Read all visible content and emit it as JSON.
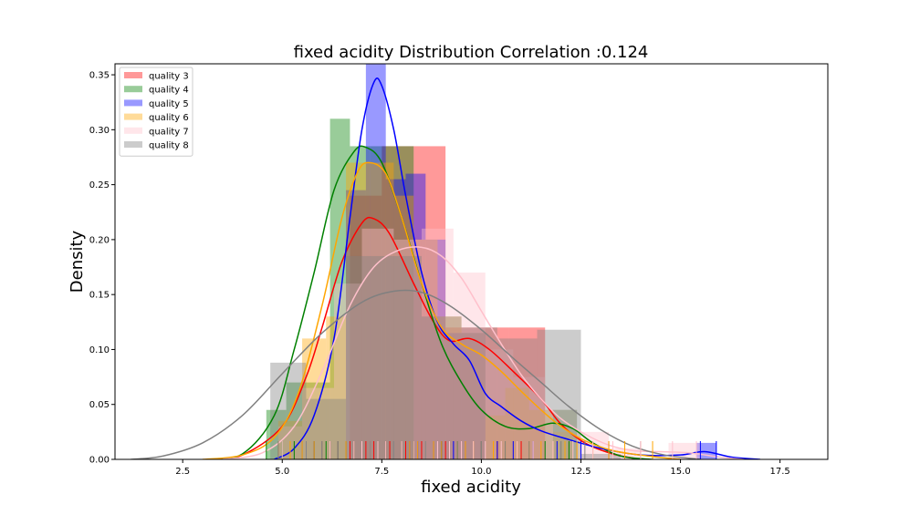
{
  "chart_data": {
    "type": "histogram-kde",
    "title": "fixed acidity Distribution Correlation :0.124",
    "xlabel": "fixed acidity",
    "ylabel": "Density",
    "xlim": [
      0.8,
      18.7
    ],
    "ylim": [
      0,
      0.36
    ],
    "xticks": [
      2.5,
      5.0,
      7.5,
      10.0,
      12.5,
      15.0,
      17.5
    ],
    "xtick_labels": [
      "2.5",
      "5.0",
      "7.5",
      "10.0",
      "12.5",
      "15.0",
      "17.5"
    ],
    "yticks": [
      0,
      0.05,
      0.1,
      0.15,
      0.2,
      0.25,
      0.3,
      0.35
    ],
    "ytick_labels": [
      "0.00",
      "0.05",
      "0.10",
      "0.15",
      "0.20",
      "0.25",
      "0.30",
      "0.35"
    ],
    "legend_position": "top-left",
    "series": [
      {
        "name": "quality 3",
        "color": "#ff0000",
        "bars": [
          [
            6.7,
            7.5,
            0.24
          ],
          [
            7.5,
            8.3,
            0.285
          ],
          [
            8.3,
            9.1,
            0.285
          ],
          [
            9.1,
            9.9,
            0.12
          ],
          [
            9.9,
            10.7,
            0.12
          ],
          [
            10.7,
            11.6,
            0.12
          ]
        ],
        "kde": [
          [
            3.2,
            0.0
          ],
          [
            4.0,
            0.004
          ],
          [
            5.0,
            0.03
          ],
          [
            5.6,
            0.075
          ],
          [
            6.0,
            0.12
          ],
          [
            6.5,
            0.18
          ],
          [
            7.0,
            0.215
          ],
          [
            7.3,
            0.219
          ],
          [
            7.7,
            0.205
          ],
          [
            8.3,
            0.16
          ],
          [
            8.8,
            0.125
          ],
          [
            9.2,
            0.108
          ],
          [
            9.7,
            0.11
          ],
          [
            10.2,
            0.1
          ],
          [
            10.8,
            0.08
          ],
          [
            11.5,
            0.055
          ],
          [
            12.0,
            0.032
          ],
          [
            12.6,
            0.015
          ],
          [
            13.3,
            0.005
          ],
          [
            14.0,
            0.0
          ]
        ],
        "rug": [
          6.7,
          7.1,
          7.3,
          7.6,
          7.7,
          8.1,
          8.3,
          8.5,
          9.1,
          10.4,
          11.0
        ]
      },
      {
        "name": "quality 4",
        "color": "#008000",
        "bars": [
          [
            4.6,
            5.1,
            0.045
          ],
          [
            5.1,
            5.6,
            0.07
          ],
          [
            5.6,
            6.2,
            0.07
          ],
          [
            6.2,
            6.7,
            0.31
          ],
          [
            6.7,
            7.2,
            0.285
          ],
          [
            7.2,
            7.7,
            0.285
          ],
          [
            7.7,
            8.3,
            0.285
          ],
          [
            8.3,
            8.8,
            0.0
          ],
          [
            8.8,
            9.3,
            0.0
          ],
          [
            11.8,
            12.4,
            0.045
          ]
        ],
        "kde": [
          [
            3.1,
            0.0
          ],
          [
            4.0,
            0.005
          ],
          [
            4.8,
            0.04
          ],
          [
            5.3,
            0.1
          ],
          [
            5.8,
            0.17
          ],
          [
            6.3,
            0.245
          ],
          [
            6.8,
            0.28
          ],
          [
            7.1,
            0.284
          ],
          [
            7.5,
            0.27
          ],
          [
            8.0,
            0.22
          ],
          [
            8.5,
            0.16
          ],
          [
            9.0,
            0.105
          ],
          [
            9.5,
            0.07
          ],
          [
            10.0,
            0.045
          ],
          [
            10.6,
            0.03
          ],
          [
            11.2,
            0.028
          ],
          [
            11.8,
            0.033
          ],
          [
            12.3,
            0.028
          ],
          [
            12.8,
            0.015
          ],
          [
            13.5,
            0.003
          ],
          [
            14.3,
            0.0
          ]
        ],
        "rug": [
          4.6,
          5.0,
          5.3,
          5.8,
          6.1,
          6.4,
          6.6,
          6.8,
          7.0,
          7.2,
          7.4,
          7.6,
          7.8,
          8.0,
          8.3,
          8.6,
          9.0,
          9.4,
          10.0,
          11.6,
          12.2
        ]
      },
      {
        "name": "quality 5",
        "color": "#0000ff",
        "bars": [
          [
            6.6,
            7.1,
            0.245
          ],
          [
            7.1,
            7.6,
            0.36
          ],
          [
            7.6,
            8.1,
            0.255
          ],
          [
            8.1,
            8.6,
            0.26
          ],
          [
            8.6,
            9.1,
            0.2
          ],
          [
            9.1,
            9.6,
            0.115
          ],
          [
            9.6,
            10.1,
            0.115
          ],
          [
            15.4,
            15.9,
            0.015
          ]
        ],
        "kde": [
          [
            4.8,
            0.0
          ],
          [
            5.3,
            0.01
          ],
          [
            5.8,
            0.04
          ],
          [
            6.3,
            0.11
          ],
          [
            6.7,
            0.22
          ],
          [
            7.0,
            0.3
          ],
          [
            7.3,
            0.343
          ],
          [
            7.5,
            0.34
          ],
          [
            7.8,
            0.3
          ],
          [
            8.1,
            0.24
          ],
          [
            8.5,
            0.17
          ],
          [
            8.9,
            0.125
          ],
          [
            9.3,
            0.105
          ],
          [
            9.7,
            0.09
          ],
          [
            10.1,
            0.06
          ],
          [
            10.5,
            0.048
          ],
          [
            11.0,
            0.035
          ],
          [
            11.5,
            0.026
          ],
          [
            12.2,
            0.018
          ],
          [
            13.0,
            0.01
          ],
          [
            14.0,
            0.004
          ],
          [
            15.0,
            0.004
          ],
          [
            15.6,
            0.007
          ],
          [
            16.3,
            0.002
          ],
          [
            17.0,
            0.0
          ]
        ],
        "rug": [
          5.5,
          5.8,
          6.0,
          6.2,
          6.4,
          6.6,
          6.8,
          7.0,
          7.2,
          7.4,
          7.6,
          7.8,
          8.0,
          8.2,
          8.4,
          8.6,
          8.8,
          9.0,
          9.3,
          9.6,
          10.0,
          10.4,
          10.8,
          11.3,
          11.9,
          12.5,
          13.2,
          14.0,
          15.5,
          15.9
        ]
      },
      {
        "name": "quality 6",
        "color": "#ffa500",
        "bars": [
          [
            4.9,
            5.5,
            0.035
          ],
          [
            5.5,
            6.1,
            0.11
          ],
          [
            6.1,
            6.6,
            0.13
          ],
          [
            6.6,
            7.2,
            0.27
          ],
          [
            7.2,
            7.8,
            0.27
          ],
          [
            7.8,
            8.3,
            0.24
          ],
          [
            8.3,
            8.9,
            0.2
          ],
          [
            8.9,
            9.5,
            0.13
          ],
          [
            9.5,
            10.1,
            0.115
          ],
          [
            10.1,
            10.6,
            0.04
          ],
          [
            10.6,
            11.2,
            0.065
          ],
          [
            11.2,
            11.8,
            0.045
          ],
          [
            11.8,
            12.3,
            0.025
          ]
        ],
        "kde": [
          [
            3.0,
            0.0
          ],
          [
            4.0,
            0.004
          ],
          [
            4.8,
            0.02
          ],
          [
            5.4,
            0.06
          ],
          [
            6.0,
            0.14
          ],
          [
            6.5,
            0.22
          ],
          [
            6.9,
            0.262
          ],
          [
            7.2,
            0.27
          ],
          [
            7.6,
            0.26
          ],
          [
            8.0,
            0.22
          ],
          [
            8.5,
            0.16
          ],
          [
            9.0,
            0.12
          ],
          [
            9.5,
            0.105
          ],
          [
            10.0,
            0.095
          ],
          [
            10.5,
            0.08
          ],
          [
            11.0,
            0.062
          ],
          [
            11.5,
            0.045
          ],
          [
            12.0,
            0.03
          ],
          [
            12.6,
            0.017
          ],
          [
            13.3,
            0.008
          ],
          [
            14.2,
            0.003
          ],
          [
            15.0,
            0.0
          ]
        ],
        "rug": [
          4.9,
          5.2,
          5.5,
          5.8,
          6.0,
          6.2,
          6.4,
          6.6,
          6.8,
          7.0,
          7.2,
          7.4,
          7.6,
          7.8,
          8.0,
          8.2,
          8.4,
          8.6,
          8.8,
          9.0,
          9.2,
          9.4,
          9.6,
          9.8,
          10.0,
          10.3,
          10.6,
          10.9,
          11.2,
          11.5,
          11.8,
          12.1,
          12.4,
          12.8,
          13.2,
          13.6,
          14.0,
          14.3
        ]
      },
      {
        "name": "quality 7",
        "color": "#ffc0cb",
        "bars": [
          [
            4.9,
            5.5,
            0.03
          ],
          [
            5.5,
            6.3,
            0.065
          ],
          [
            6.3,
            7.0,
            0.16
          ],
          [
            7.0,
            7.8,
            0.21
          ],
          [
            7.8,
            8.5,
            0.2
          ],
          [
            8.5,
            9.3,
            0.21
          ],
          [
            9.3,
            10.1,
            0.17
          ],
          [
            10.1,
            10.8,
            0.1
          ],
          [
            10.8,
            11.6,
            0.075
          ],
          [
            11.6,
            12.4,
            0.045
          ],
          [
            12.4,
            13.2,
            0.025
          ],
          [
            13.2,
            14.0,
            0.01
          ],
          [
            14.7,
            15.5,
            0.015
          ]
        ],
        "kde": [
          [
            3.5,
            0.0
          ],
          [
            4.5,
            0.006
          ],
          [
            5.3,
            0.03
          ],
          [
            6.0,
            0.08
          ],
          [
            6.7,
            0.14
          ],
          [
            7.3,
            0.175
          ],
          [
            7.9,
            0.19
          ],
          [
            8.5,
            0.193
          ],
          [
            9.0,
            0.185
          ],
          [
            9.5,
            0.165
          ],
          [
            10.0,
            0.135
          ],
          [
            10.5,
            0.105
          ],
          [
            11.0,
            0.077
          ],
          [
            11.5,
            0.055
          ],
          [
            12.0,
            0.037
          ],
          [
            12.6,
            0.023
          ],
          [
            13.2,
            0.013
          ],
          [
            13.8,
            0.008
          ],
          [
            14.5,
            0.007
          ],
          [
            15.2,
            0.006
          ],
          [
            16.0,
            0.002
          ],
          [
            16.6,
            0.0
          ]
        ],
        "rug": [
          5.0,
          5.6,
          6.2,
          6.8,
          7.0,
          7.2,
          7.4,
          7.6,
          7.8,
          8.0,
          8.3,
          8.6,
          8.9,
          9.2,
          9.5,
          9.8,
          10.1,
          10.5,
          10.9,
          11.3,
          11.8,
          12.3,
          12.8,
          13.3,
          14.0,
          14.8,
          15.4
        ]
      },
      {
        "name": "quality 8",
        "color": "#808080",
        "bars": [
          [
            4.7,
            5.6,
            0.088
          ],
          [
            5.6,
            6.6,
            0.055
          ],
          [
            6.6,
            7.6,
            0.185
          ],
          [
            7.6,
            8.5,
            0.185
          ],
          [
            8.5,
            9.5,
            0.13
          ],
          [
            9.5,
            10.4,
            0.12
          ],
          [
            10.4,
            11.4,
            0.11
          ],
          [
            11.4,
            12.5,
            0.118
          ],
          [
            12.5,
            13.5,
            0.005
          ]
        ],
        "kde": [
          [
            1.2,
            0.0
          ],
          [
            2.0,
            0.003
          ],
          [
            3.0,
            0.015
          ],
          [
            4.0,
            0.04
          ],
          [
            5.0,
            0.078
          ],
          [
            6.0,
            0.115
          ],
          [
            7.0,
            0.143
          ],
          [
            7.8,
            0.153
          ],
          [
            8.5,
            0.152
          ],
          [
            9.2,
            0.14
          ],
          [
            10.0,
            0.118
          ],
          [
            10.8,
            0.092
          ],
          [
            11.5,
            0.07
          ],
          [
            12.2,
            0.048
          ],
          [
            13.0,
            0.027
          ],
          [
            13.8,
            0.012
          ],
          [
            14.6,
            0.004
          ],
          [
            15.5,
            0.0
          ]
        ],
        "rug": [
          4.9,
          5.6,
          6.0,
          6.4,
          7.2,
          7.8,
          8.6,
          9.4,
          10.0,
          10.6,
          11.2,
          12.0,
          12.6
        ]
      }
    ]
  }
}
